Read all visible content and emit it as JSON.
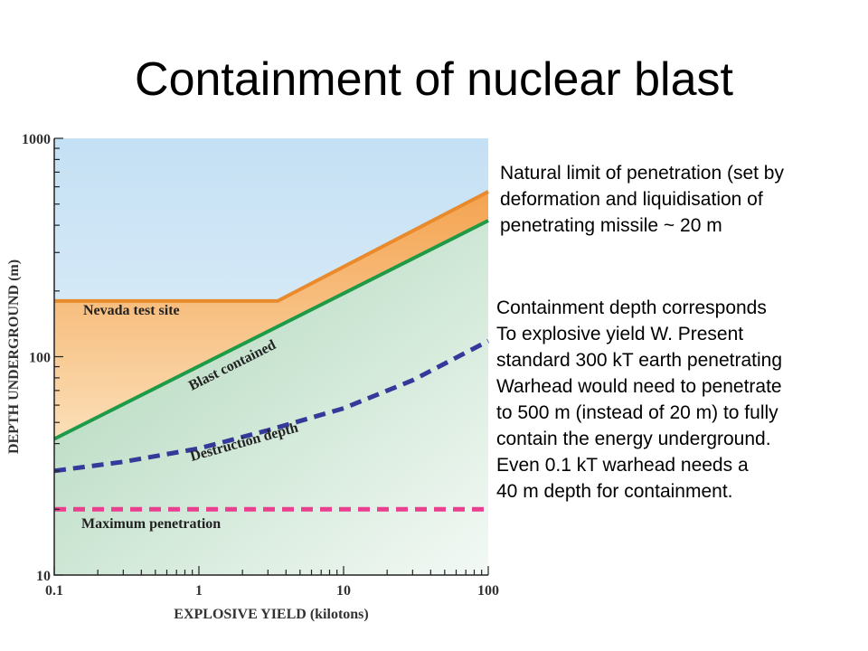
{
  "slide": {
    "title": "Containment of nuclear blast",
    "note_top": [
      "Natural limit of penetration (set by",
      "deformation and liquidisation of",
      "penetrating missile ~ 20 m"
    ],
    "note_bottom": [
      "Containment depth corresponds",
      "To explosive yield W. Present",
      "standard 300 kT earth penetrating",
      "Warhead would need to penetrate",
      "to 500 m (instead of 20 m) to fully",
      "contain the energy underground.",
      "Even 0.1 kT warhead needs a",
      "40 m depth for containment."
    ]
  },
  "chart_data": {
    "type": "line",
    "xlabel": "EXPLOSIVE YIELD (kilotons)",
    "ylabel": "DEPTH UNDERGROUND (m)",
    "xscale": "log",
    "yscale": "log",
    "xlim": [
      0.1,
      100
    ],
    "ylim": [
      10,
      1000
    ],
    "xticks": [
      "0.1",
      "1",
      "10",
      "100"
    ],
    "yticks": [
      "10",
      "100",
      "1000"
    ],
    "grid": false,
    "series": [
      {
        "name": "Nevada test site",
        "style": "solid",
        "color": "#e98a2c",
        "points": [
          [
            0.1,
            180
          ],
          [
            3.5,
            180
          ],
          [
            100,
            570
          ]
        ]
      },
      {
        "name": "Blast contained",
        "style": "solid",
        "color": "#1f9a47",
        "points": [
          [
            0.1,
            42
          ],
          [
            100,
            420
          ]
        ]
      },
      {
        "name": "Destruction depth",
        "style": "dashed",
        "color": "#34399a",
        "points": [
          [
            0.1,
            30
          ],
          [
            0.3,
            33
          ],
          [
            1,
            38
          ],
          [
            3,
            46
          ],
          [
            10,
            58
          ],
          [
            30,
            78
          ],
          [
            100,
            118
          ]
        ]
      },
      {
        "name": "Maximum penetration",
        "style": "dashed",
        "color": "#ea3f8e",
        "points": [
          [
            0.1,
            20
          ],
          [
            100,
            20
          ]
        ]
      }
    ],
    "colors": {
      "orange_band": "#f6a958",
      "green_band": "#a9d4b5",
      "sky_band": "#c7e2f4"
    }
  }
}
